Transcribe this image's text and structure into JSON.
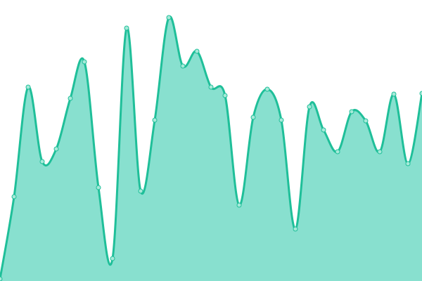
{
  "chart_data": {
    "type": "area",
    "title": "",
    "xlabel": "",
    "ylabel": "",
    "x": [
      0,
      1,
      2,
      3,
      4,
      5,
      6,
      7,
      8,
      9,
      10,
      11,
      12,
      13,
      14,
      15,
      16,
      17,
      18,
      19,
      20,
      21,
      22,
      23,
      24,
      25,
      26,
      27,
      28,
      29,
      30
    ],
    "values": [
      3,
      120,
      276,
      170,
      188,
      260,
      312,
      133,
      32,
      360,
      128,
      229,
      375,
      306,
      327,
      276,
      264,
      108,
      233,
      273,
      229,
      74,
      248,
      215,
      184,
      241,
      228,
      184,
      266,
      167,
      267
    ],
    "ylim": [
      0,
      400
    ],
    "grid": false,
    "axes_visible": false,
    "curve": "smooth",
    "colors": {
      "line": "#1fbf99",
      "fill": "#88e0cf",
      "point_fill": "#a6ead9",
      "point_stroke": "#1fbf99"
    }
  }
}
